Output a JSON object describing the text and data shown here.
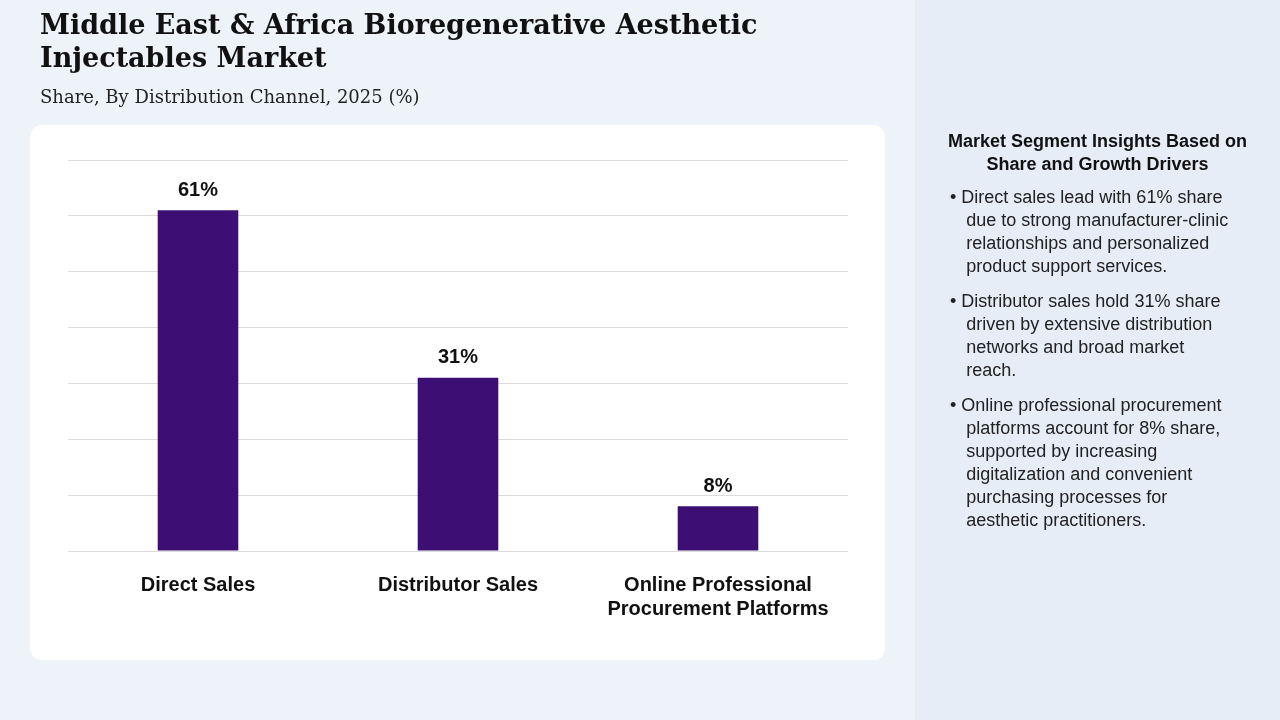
{
  "chart_data": [
    {
      "type": "bar",
      "title": "Middle East & Africa Bioregenerative Aesthetic Injectables Market",
      "subtitle": "Share, By Distribution Channel, 2025 (%)",
      "categories": [
        "Direct Sales",
        "Distributor Sales",
        "Online Professional Procurement Platforms"
      ],
      "values": [
        61,
        31,
        8
      ],
      "color": "#3d0e73",
      "value_labels": [
        "61%",
        "31%",
        "8%"
      ],
      "ylim": [
        0,
        70
      ],
      "yticks": [
        {
          "value": 0,
          "label": null
        },
        {
          "value": 10,
          "label": null
        },
        {
          "value": 20,
          "label": null
        },
        {
          "value": 30,
          "label": null
        },
        {
          "value": 40,
          "label": null
        },
        {
          "value": 50,
          "label": null
        },
        {
          "value": 60,
          "label": null
        },
        {
          "value": 70,
          "label": null
        }
      ],
      "grid": "y",
      "tick_labels": "x"
    },
    {
      "type": "other",
      "title": "Market Segment Insights Based on Share and Growth Drivers",
      "annotations": [
        "• Direct sales lead with 61% share due to strong manufacturer-clinic relationships and personalized product support services.",
        "• Distributor sales hold 31% share driven by extensive distribution networks and broad market reach.",
        "• Online professional procurement platforms account for 8% share, supported by increasing digitalization and convenient purchasing processes for aesthetic practitioners."
      ]
    }
  ]
}
